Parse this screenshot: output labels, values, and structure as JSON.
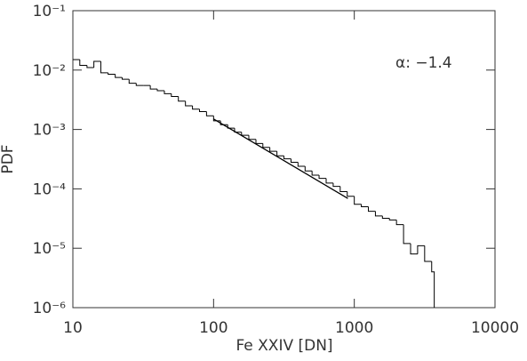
{
  "chart_data": {
    "type": "histogram",
    "xlabel": "Fe XXIV [DN]",
    "ylabel": "PDF",
    "annotation": "α: −1.4",
    "xscale": "log",
    "yscale": "log",
    "color": "#000000",
    "bins": [
      10,
      11.2,
      12.6,
      14.1,
      15.8,
      17.8,
      20,
      22.4,
      25.1,
      28.2,
      31.6,
      35.5,
      39.8,
      44.7,
      50.1,
      56.2,
      63.1,
      70.8,
      79.4,
      89.1,
      100,
      112,
      126,
      141,
      158,
      178,
      200,
      224,
      251,
      282,
      316,
      355,
      398,
      447,
      501,
      562,
      631,
      708,
      794,
      891,
      1000,
      1122,
      1259,
      1413,
      1585,
      1778,
      1995,
      2239,
      2512,
      2818,
      3162,
      3548,
      3700
    ],
    "values": [
      0.015,
      0.012,
      0.011,
      0.014,
      0.009,
      0.0085,
      0.0075,
      0.007,
      0.006,
      0.0055,
      0.0055,
      0.0048,
      0.0045,
      0.004,
      0.0036,
      0.003,
      0.0025,
      0.0022,
      0.002,
      0.0017,
      0.0014,
      0.0012,
      0.00105,
      0.0009,
      0.0008,
      0.00068,
      0.00058,
      0.0005,
      0.00043,
      0.00036,
      0.00032,
      0.00028,
      0.00024,
      0.0002,
      0.00017,
      0.00015,
      0.000125,
      0.00011,
      9e-05,
      7.5e-05,
      5.5e-05,
      5e-05,
      4.2e-05,
      3.5e-05,
      3.2e-05,
      3e-05,
      2.5e-05,
      1.2e-05,
      8e-06,
      1.1e-05,
      6e-06,
      4e-06
    ],
    "fit": {
      "x": [
        100,
        900
      ],
      "values": [
        0.0015,
        6.9e-05
      ]
    },
    "xlim": [
      10,
      10000
    ],
    "xticks": [
      10,
      100,
      1000,
      10000
    ],
    "ylim": [
      1e-06,
      0.1
    ],
    "yticks": [
      {
        "value": 1e-06,
        "label": "10⁻⁶"
      },
      {
        "value": 1e-05,
        "label": "10⁻⁵"
      },
      {
        "value": 0.0001,
        "label": "10⁻⁴"
      },
      {
        "value": 0.001,
        "label": "10⁻³"
      },
      {
        "value": 0.01,
        "label": "10⁻²"
      },
      {
        "value": 0.1,
        "label": "10⁻¹"
      }
    ]
  }
}
